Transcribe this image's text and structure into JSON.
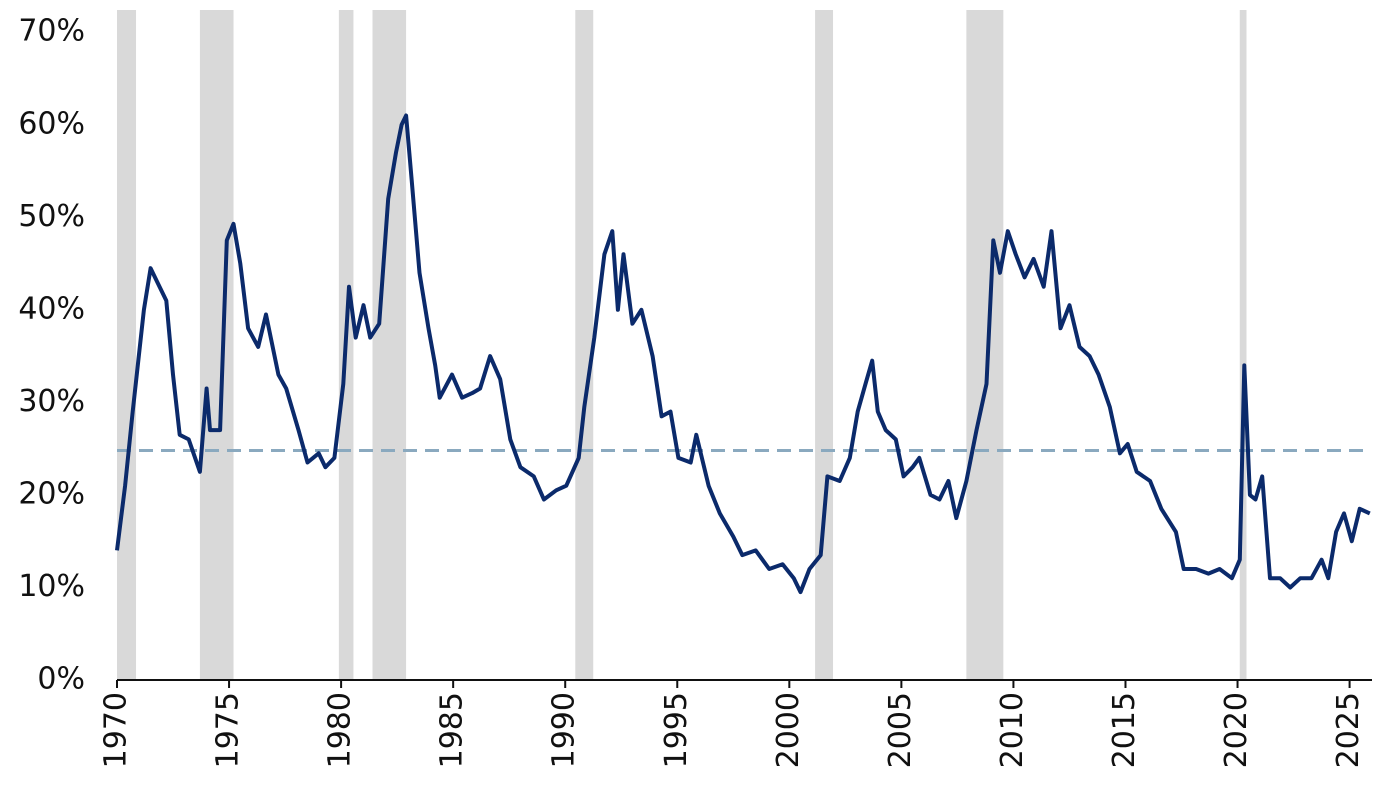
{
  "chart_data": {
    "type": "line",
    "x": [
      1970.0,
      1970.36,
      1970.7,
      1971.2,
      1971.5,
      1971.8,
      1972.2,
      1972.5,
      1972.8,
      1973.2,
      1973.7,
      1974.0,
      1974.15,
      1974.6,
      1974.9,
      1975.2,
      1975.5,
      1975.85,
      1976.3,
      1976.65,
      1977.2,
      1977.55,
      1978.1,
      1978.5,
      1979.0,
      1979.3,
      1979.7,
      1980.1,
      1980.35,
      1980.65,
      1981.0,
      1981.3,
      1981.7,
      1982.1,
      1982.45,
      1982.7,
      1982.9,
      1983.15,
      1983.5,
      1983.9,
      1984.2,
      1984.4,
      1984.95,
      1985.4,
      1985.85,
      1986.2,
      1986.65,
      1987.1,
      1987.55,
      1988.0,
      1988.6,
      1989.05,
      1989.6,
      1990.05,
      1990.6,
      1990.85,
      1991.3,
      1991.75,
      1992.1,
      1992.35,
      1992.6,
      1993.0,
      1993.4,
      1993.9,
      1994.3,
      1994.7,
      1995.05,
      1995.6,
      1995.85,
      1996.4,
      1996.9,
      1997.5,
      1997.9,
      1998.5,
      1999.1,
      1999.7,
      2000.2,
      2000.5,
      2000.9,
      2001.4,
      2001.7,
      2002.25,
      2002.7,
      2003.05,
      2003.4,
      2003.7,
      2003.95,
      2004.3,
      2004.75,
      2005.1,
      2005.5,
      2005.8,
      2006.3,
      2006.7,
      2007.1,
      2007.45,
      2007.9,
      2008.35,
      2008.8,
      2009.1,
      2009.4,
      2009.75,
      2010.1,
      2010.5,
      2010.9,
      2011.35,
      2011.7,
      2012.1,
      2012.5,
      2012.95,
      2013.4,
      2013.8,
      2014.3,
      2014.75,
      2015.1,
      2015.5,
      2016.1,
      2016.6,
      2017.25,
      2017.6,
      2018.15,
      2018.7,
      2019.2,
      2019.75,
      2020.1,
      2020.3,
      2020.55,
      2020.8,
      2021.1,
      2021.45,
      2021.9,
      2022.35,
      2022.8,
      2023.3,
      2023.75,
      2024.05,
      2024.4,
      2024.75,
      2025.1,
      2025.45,
      2025.9
    ],
    "values": [
      14,
      21,
      29,
      40,
      44.5,
      43,
      41,
      33,
      26.5,
      26,
      22.5,
      31.5,
      27,
      27,
      47.5,
      49.3,
      45,
      38,
      36,
      39.5,
      33,
      31.5,
      27,
      23.5,
      24.5,
      23,
      24,
      32,
      42.5,
      37,
      40.5,
      37,
      38.5,
      52,
      57,
      60,
      61,
      54,
      44,
      38,
      34,
      30.5,
      33,
      30.5,
      31,
      31.5,
      35,
      32.5,
      26,
      23,
      22,
      19.5,
      20.5,
      21,
      24,
      29.5,
      37,
      46,
      48.5,
      40,
      46,
      38.5,
      40,
      35,
      28.5,
      29,
      24,
      23.5,
      26.5,
      21,
      18,
      15.5,
      13.5,
      14,
      12,
      12.5,
      11,
      9.5,
      12,
      13.5,
      22,
      21.5,
      24,
      29,
      32,
      34.5,
      29,
      27,
      26,
      22,
      23,
      24,
      20,
      19.5,
      21.5,
      17.5,
      21.5,
      27,
      32,
      47.5,
      44,
      48.5,
      46,
      43.5,
      45.5,
      42.5,
      48.5,
      38,
      40.5,
      36,
      35,
      33,
      29.5,
      24.5,
      25.5,
      22.5,
      21.5,
      18.5,
      16,
      12,
      12,
      11.5,
      12,
      11,
      13,
      34,
      20,
      19.5,
      22,
      11,
      11,
      10,
      11,
      11,
      13,
      11,
      16,
      18,
      15,
      18.5,
      18
    ],
    "color": "#0b2a6b",
    "average": 24.8,
    "average_color": "#8aa9bf",
    "shaded_periods": [
      [
        1970.0,
        1970.85
      ],
      [
        1973.7,
        1975.2
      ],
      [
        1979.9,
        1980.55
      ],
      [
        1981.4,
        1982.9
      ],
      [
        1990.45,
        1991.25
      ],
      [
        2001.15,
        2001.95
      ],
      [
        2007.9,
        2009.55
      ],
      [
        2020.1,
        2020.4
      ]
    ],
    "shade_color": "#d9d9d9",
    "xlim": [
      1970,
      2026
    ],
    "xticks": [
      1970,
      1975,
      1980,
      1985,
      1990,
      1995,
      2000,
      2005,
      2010,
      2015,
      2020,
      2025
    ],
    "ylim": [
      0,
      72.4
    ],
    "yticks": [
      {
        "value": 0,
        "label": "0%"
      },
      {
        "value": 10,
        "label": "10%"
      },
      {
        "value": 20,
        "label": "20%"
      },
      {
        "value": 30,
        "label": "30%"
      },
      {
        "value": 40,
        "label": "40%"
      },
      {
        "value": 50,
        "label": "50%"
      },
      {
        "value": 60,
        "label": "60%"
      },
      {
        "value": 70,
        "label": "70%"
      }
    ]
  }
}
